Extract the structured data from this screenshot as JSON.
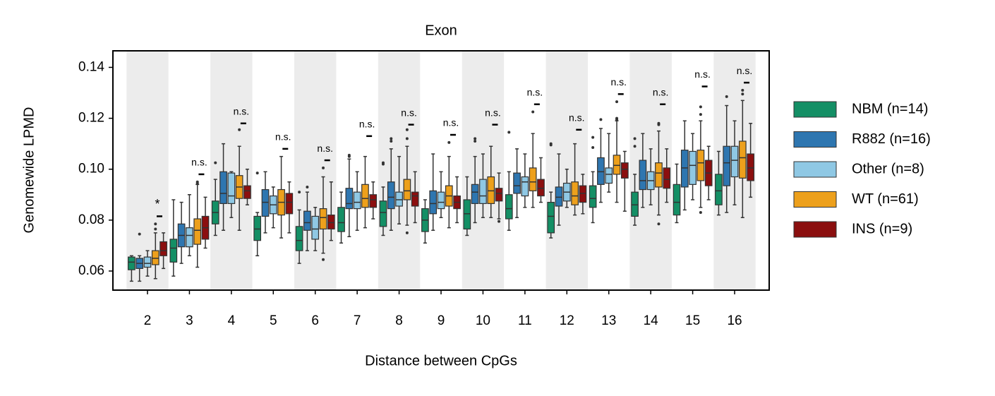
{
  "chart_data": {
    "type": "box",
    "title": "Exon",
    "x_label": "Distance between CpGs",
    "y_label": "Genomewide LPMD",
    "categories": [
      "2",
      "3",
      "4",
      "5",
      "6",
      "7",
      "8",
      "9",
      "10",
      "11",
      "12",
      "13",
      "14",
      "15",
      "16"
    ],
    "ylim": [
      0.0525,
      0.1465
    ],
    "yticks": [
      0.06,
      0.08,
      {
        "value": 0.1,
        "label": "0.10"
      },
      0.12,
      0.14
    ],
    "band_shading": "#ececec",
    "series": [
      {
        "name": "NBM (n=14)",
        "color": "#148f65",
        "whislo": [
          0.056,
          0.058,
          0.074,
          0.066,
          0.063,
          0.071,
          0.074,
          0.071,
          0.074,
          0.076,
          0.073,
          0.079,
          0.078,
          0.079,
          0.082
        ],
        "q1": [
          0.0605,
          0.0635,
          0.0785,
          0.072,
          0.068,
          0.0755,
          0.0775,
          0.0755,
          0.0765,
          0.0805,
          0.075,
          0.085,
          0.0815,
          0.082,
          0.086
        ],
        "med": [
          0.0635,
          0.069,
          0.083,
          0.0765,
          0.072,
          0.079,
          0.083,
          0.08,
          0.0825,
          0.0845,
          0.0815,
          0.0885,
          0.086,
          0.087,
          0.0915
        ],
        "q3": [
          0.0655,
          0.0725,
          0.0875,
          0.0815,
          0.0775,
          0.085,
          0.0875,
          0.0845,
          0.088,
          0.09,
          0.087,
          0.0935,
          0.091,
          0.094,
          0.098
        ],
        "whishi": [
          0.066,
          0.088,
          0.096,
          0.083,
          0.084,
          0.091,
          0.093,
          0.088,
          0.097,
          0.099,
          0.091,
          0.099,
          0.098,
          0.102,
          0.107
        ],
        "fliers": [
          [],
          [],
          [
            0.1025
          ],
          [
            0.0985
          ],
          [
            0.091
          ],
          [],
          [
            0.102,
            0.1025
          ],
          [],
          [],
          [
            0.1145
          ],
          [
            0.1095,
            0.11
          ],
          [
            0.1085,
            0.1125
          ],
          [
            0.109,
            0.112
          ],
          [],
          []
        ]
      },
      {
        "name": "R882 (n=16)",
        "color": "#2e76b0",
        "whislo": [
          0.056,
          0.063,
          0.076,
          0.075,
          0.068,
          0.0735,
          0.076,
          0.076,
          0.079,
          0.081,
          0.078,
          0.087,
          0.085,
          0.084,
          0.083
        ],
        "q1": [
          0.061,
          0.0695,
          0.0865,
          0.0815,
          0.076,
          0.0845,
          0.0845,
          0.0825,
          0.0865,
          0.0905,
          0.0855,
          0.094,
          0.092,
          0.093,
          0.0935
        ],
        "med": [
          0.063,
          0.074,
          0.0905,
          0.087,
          0.079,
          0.0865,
          0.089,
          0.0865,
          0.091,
          0.0935,
          0.089,
          0.099,
          0.0955,
          0.1005,
          0.1025
        ],
        "q3": [
          0.065,
          0.0785,
          0.099,
          0.092,
          0.0835,
          0.0925,
          0.095,
          0.0915,
          0.094,
          0.0985,
          0.093,
          0.1045,
          0.1035,
          0.1075,
          0.109
        ],
        "whishi": [
          0.066,
          0.087,
          0.11,
          0.099,
          0.091,
          0.104,
          0.108,
          0.106,
          0.105,
          0.108,
          0.106,
          0.116,
          0.114,
          0.119,
          0.125
        ],
        "fliers": [
          [
            0.0745
          ],
          [],
          [],
          [],
          [
            0.093
          ],
          [
            0.105,
            0.1055
          ],
          [
            0.111,
            0.112
          ],
          [],
          [
            0.111,
            0.112
          ],
          [],
          [],
          [
            0.1195
          ],
          [],
          [],
          [
            0.1285
          ]
        ]
      },
      {
        "name": "Other (n=8)",
        "color": "#8fc8e4",
        "whislo": [
          0.058,
          0.066,
          0.081,
          0.077,
          0.068,
          0.076,
          0.0785,
          0.081,
          0.081,
          0.085,
          0.085,
          0.091,
          0.086,
          0.088,
          0.086
        ],
        "q1": [
          0.0615,
          0.0695,
          0.0865,
          0.0825,
          0.0725,
          0.0845,
          0.0855,
          0.0845,
          0.0865,
          0.0895,
          0.0875,
          0.0945,
          0.092,
          0.094,
          0.097
        ],
        "med": [
          0.063,
          0.074,
          0.0895,
          0.086,
          0.0765,
          0.087,
          0.088,
          0.087,
          0.0895,
          0.095,
          0.091,
          0.098,
          0.0955,
          0.1015,
          0.1035
        ],
        "q3": [
          0.0655,
          0.077,
          0.0985,
          0.0895,
          0.0815,
          0.091,
          0.091,
          0.091,
          0.096,
          0.097,
          0.0945,
          0.1005,
          0.099,
          0.107,
          0.109
        ],
        "whishi": [
          0.068,
          0.09,
          0.099,
          0.093,
          0.085,
          0.099,
          0.105,
          0.099,
          0.106,
          0.106,
          0.1,
          0.114,
          0.108,
          0.114,
          0.119
        ],
        "fliers": [
          [],
          [],
          [],
          [],
          [],
          [],
          [],
          [],
          [],
          [],
          [],
          [],
          [],
          [],
          []
        ]
      },
      {
        "name": "WT (n=61)",
        "color": "#eda01c",
        "whislo": [
          0.057,
          0.0615,
          0.076,
          0.073,
          0.067,
          0.077,
          0.078,
          0.077,
          0.081,
          0.085,
          0.082,
          0.087,
          0.082,
          0.085,
          0.081
        ],
        "q1": [
          0.0625,
          0.0705,
          0.0885,
          0.082,
          0.0765,
          0.085,
          0.088,
          0.0855,
          0.0865,
          0.0915,
          0.086,
          0.098,
          0.093,
          0.0955,
          0.0965
        ],
        "med": [
          0.065,
          0.076,
          0.093,
          0.087,
          0.081,
          0.0885,
          0.0915,
          0.0895,
          0.0915,
          0.095,
          0.0895,
          0.1015,
          0.0985,
          0.1025,
          0.1045
        ],
        "q3": [
          0.068,
          0.0805,
          0.0975,
          0.092,
          0.0845,
          0.094,
          0.096,
          0.0935,
          0.097,
          0.1005,
          0.095,
          0.1055,
          0.1025,
          0.1075,
          0.111
        ],
        "whishi": [
          0.075,
          0.094,
          0.109,
          0.105,
          0.097,
          0.105,
          0.109,
          0.105,
          0.109,
          0.114,
          0.11,
          0.119,
          0.115,
          0.119,
          0.127
        ],
        "fliers": [
          [
            0.0765,
            0.0785
          ],
          [
            0.0945,
            0.095
          ],
          [
            0.1155
          ],
          [],
          [
            0.0645,
            0.1005
          ],
          [],
          [
            0.075,
            0.112,
            0.1155
          ],
          [
            0.1105
          ],
          [],
          [
            0.1225
          ],
          [],
          [
            0.1195,
            0.12,
            0.1265
          ],
          [
            0.0785,
            0.1175,
            0.118
          ],
          [
            0.083,
            0.1215,
            0.1245
          ],
          [
            0.1295,
            0.131
          ]
        ]
      },
      {
        "name": "INS (n=9)",
        "color": "#8b0f0f",
        "whislo": [
          0.061,
          0.069,
          0.086,
          0.075,
          0.072,
          0.0805,
          0.079,
          0.079,
          0.0805,
          0.087,
          0.0825,
          0.0835,
          0.087,
          0.088,
          0.089
        ],
        "q1": [
          0.066,
          0.0725,
          0.0885,
          0.0825,
          0.0765,
          0.085,
          0.0855,
          0.0845,
          0.0875,
          0.0895,
          0.087,
          0.0965,
          0.0925,
          0.0935,
          0.0955
        ],
        "med": [
          0.068,
          0.077,
          0.0915,
          0.087,
          0.079,
          0.088,
          0.0895,
          0.087,
          0.0905,
          0.0925,
          0.0905,
          0.1,
          0.096,
          0.0985,
          0.1005
        ],
        "q3": [
          0.0715,
          0.0815,
          0.0935,
          0.0905,
          0.082,
          0.09,
          0.091,
          0.0895,
          0.0925,
          0.096,
          0.0935,
          0.1025,
          0.1005,
          0.1035,
          0.106
        ],
        "whishi": [
          0.075,
          0.089,
          0.1,
          0.095,
          0.095,
          0.095,
          0.099,
          0.097,
          0.0985,
          0.1045,
          0.098,
          0.107,
          0.108,
          0.109,
          0.118
        ],
        "fliers": [
          [],
          [],
          [],
          [],
          [],
          [],
          [],
          [],
          [
            0.0795
          ],
          [],
          [],
          [],
          [],
          [],
          []
        ]
      }
    ],
    "annotations": [
      {
        "text": "*",
        "y": 0.0815
      },
      {
        "text": "n.s.",
        "y": 0.098
      },
      {
        "text": "n.s.",
        "y": 0.118
      },
      {
        "text": "n.s.",
        "y": 0.108
      },
      {
        "text": "n.s.",
        "y": 0.1035
      },
      {
        "text": "n.s.",
        "y": 0.113
      },
      {
        "text": "n.s.",
        "y": 0.1175
      },
      {
        "text": "n.s.",
        "y": 0.1135
      },
      {
        "text": "n.s.",
        "y": 0.1175
      },
      {
        "text": "n.s.",
        "y": 0.1255
      },
      {
        "text": "n.s.",
        "y": 0.1155
      },
      {
        "text": "n.s.",
        "y": 0.1295
      },
      {
        "text": "n.s.",
        "y": 0.1255
      },
      {
        "text": "n.s.",
        "y": 0.1325
      },
      {
        "text": "n.s.",
        "y": 0.134
      }
    ]
  }
}
